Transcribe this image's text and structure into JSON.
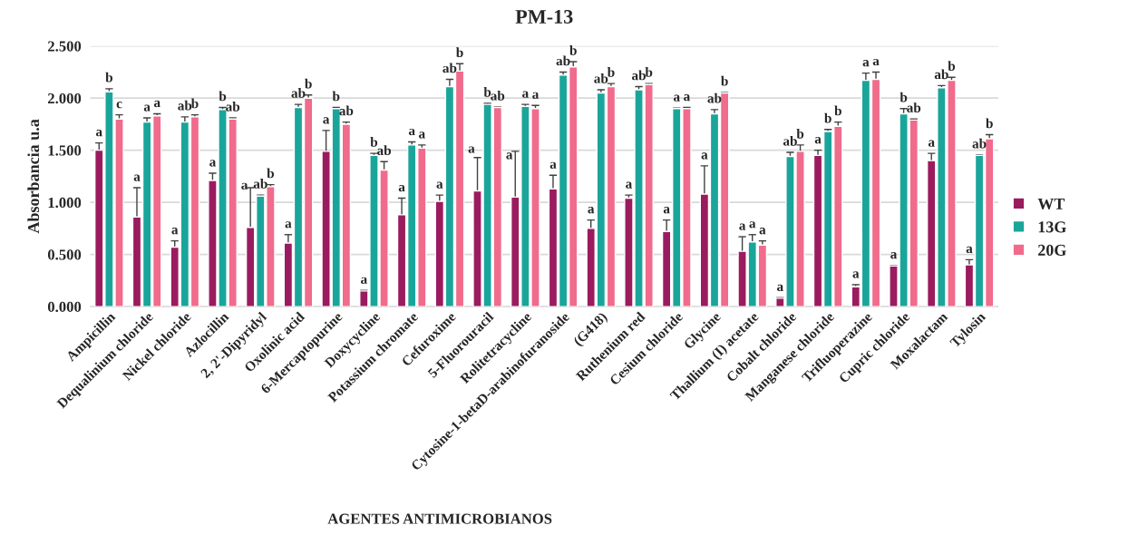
{
  "chart_data": {
    "type": "bar",
    "title": "PM-13",
    "xlabel": "AGENTES ANTIMICROBIANOS",
    "ylabel": "Absorbancia u.a",
    "categories": [
      "Ampicillin",
      "Dequalinium chloride",
      "Nickel chloride",
      "Azlocillin",
      "2, 2'-Dipyridyl",
      "Oxolinic acid",
      "6-Mercaptopurine",
      "Doxycycline",
      "Potassium chromate",
      "Cefuroxime",
      "5-Fluorouracil",
      "Rolitetracycline",
      "Cytosine-1-betaD-arabinofuranoside",
      "(G418)",
      "Ruthenium red",
      "Cesium chloride",
      "Glycine",
      "Thallium (I) acetate",
      "Cobalt chloride",
      "Manganese chloride",
      "Trifluoperazine",
      "Cupric chloride",
      "Moxalactam",
      "Tylosin"
    ],
    "series": [
      {
        "name": "WT",
        "color": "#9b1b5f",
        "values": [
          1.5,
          0.86,
          0.57,
          1.21,
          0.76,
          0.61,
          1.49,
          0.15,
          0.88,
          1.01,
          1.11,
          1.05,
          1.13,
          0.75,
          1.04,
          0.72,
          1.08,
          0.53,
          0.08,
          1.45,
          0.19,
          0.39,
          1.4,
          0.4
        ],
        "errors": [
          0.07,
          0.28,
          0.06,
          0.07,
          0.38,
          0.08,
          0.2,
          0.005,
          0.16,
          0.06,
          0.32,
          0.44,
          0.13,
          0.08,
          0.03,
          0.11,
          0.27,
          0.14,
          0.005,
          0.05,
          0.02,
          0.005,
          0.07,
          0.05
        ],
        "value_labels": [
          "a",
          "a",
          "a",
          "a",
          "a",
          "a",
          "a",
          "a",
          "a",
          "a",
          "a",
          "a",
          "a",
          "a",
          "a",
          "a",
          "a",
          "a",
          "a",
          "a",
          "a",
          "a",
          "a",
          "a"
        ]
      },
      {
        "name": "13G",
        "color": "#1aa59b",
        "values": [
          2.06,
          1.77,
          1.77,
          1.89,
          1.06,
          1.91,
          1.9,
          1.45,
          1.55,
          2.11,
          1.94,
          1.92,
          2.22,
          2.05,
          2.08,
          1.9,
          1.85,
          0.62,
          1.44,
          1.68,
          2.17,
          1.85,
          2.1,
          1.45
        ],
        "errors": [
          0.03,
          0.04,
          0.05,
          0.02,
          0.01,
          0.03,
          0.01,
          0.02,
          0.03,
          0.07,
          0.01,
          0.02,
          0.03,
          0.03,
          0.03,
          0.005,
          0.04,
          0.07,
          0.04,
          0.02,
          0.07,
          0.05,
          0.02,
          0.005
        ],
        "value_labels": [
          "b",
          "a",
          "ab",
          "b",
          "ab",
          "ab",
          "b",
          "b",
          "a",
          "ab",
          "b",
          "a",
          "ab",
          "ab",
          "ab",
          "a",
          "ab",
          "a",
          "ab",
          "b",
          "a",
          "b",
          "ab",
          "ab"
        ]
      },
      {
        "name": "20G",
        "color": "#f06b8c",
        "values": [
          1.8,
          1.83,
          1.82,
          1.8,
          1.15,
          2.0,
          1.75,
          1.31,
          1.52,
          2.26,
          1.91,
          1.9,
          2.3,
          2.11,
          2.13,
          1.9,
          2.05,
          0.59,
          1.49,
          1.73,
          2.18,
          1.79,
          2.17,
          1.61
        ],
        "errors": [
          0.04,
          0.02,
          0.02,
          0.01,
          0.02,
          0.03,
          0.02,
          0.08,
          0.03,
          0.07,
          0.005,
          0.03,
          0.05,
          0.03,
          0.01,
          0.01,
          0.005,
          0.04,
          0.06,
          0.04,
          0.07,
          0.01,
          0.03,
          0.04
        ],
        "value_labels": [
          "c",
          "a",
          "b",
          "ab",
          "b",
          "b",
          "ab",
          "ab",
          "a",
          "b",
          "ab",
          "a",
          "b",
          "b",
          "b",
          "a",
          "b",
          "a",
          "b",
          "b",
          "a",
          "ab",
          "b",
          "b"
        ]
      }
    ],
    "ylim": [
      0,
      2.5
    ],
    "yticks": [
      {
        "value": 0,
        "label": "0.000"
      },
      {
        "value": 0.5,
        "label": "0.500"
      },
      {
        "value": 1.0,
        "label": "1.000"
      },
      {
        "value": 1.5,
        "label": "1.500"
      },
      {
        "value": 2.0,
        "label": "2.000"
      },
      {
        "value": 2.5,
        "label": "2.500"
      }
    ],
    "grid": "y",
    "legend": "right"
  }
}
